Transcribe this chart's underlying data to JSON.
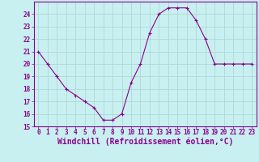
{
  "x": [
    0,
    1,
    2,
    3,
    4,
    5,
    6,
    7,
    8,
    9,
    10,
    11,
    12,
    13,
    14,
    15,
    16,
    17,
    18,
    19,
    20,
    21,
    22,
    23
  ],
  "y": [
    21,
    20,
    19,
    18,
    17.5,
    17,
    16.5,
    15.5,
    15.5,
    16,
    18.5,
    20,
    22.5,
    24,
    24.5,
    24.5,
    24.5,
    23.5,
    22,
    20,
    20,
    20,
    20,
    20
  ],
  "xlim": [
    -0.5,
    23.5
  ],
  "ylim": [
    15,
    25
  ],
  "yticks": [
    15,
    16,
    17,
    18,
    19,
    20,
    21,
    22,
    23,
    24
  ],
  "xticks": [
    0,
    1,
    2,
    3,
    4,
    5,
    6,
    7,
    8,
    9,
    10,
    11,
    12,
    13,
    14,
    15,
    16,
    17,
    18,
    19,
    20,
    21,
    22,
    23
  ],
  "xlabel": "Windchill (Refroidissement éolien,°C)",
  "line_color": "#8B008B",
  "marker": "+",
  "marker_size": 3.5,
  "bg_color": "#c8f0f0",
  "grid_color": "#b0d8d8",
  "tick_label_color": "#8B008B",
  "xlabel_color": "#8B008B",
  "tick_fontsize": 5.5,
  "xlabel_fontsize": 7.0
}
